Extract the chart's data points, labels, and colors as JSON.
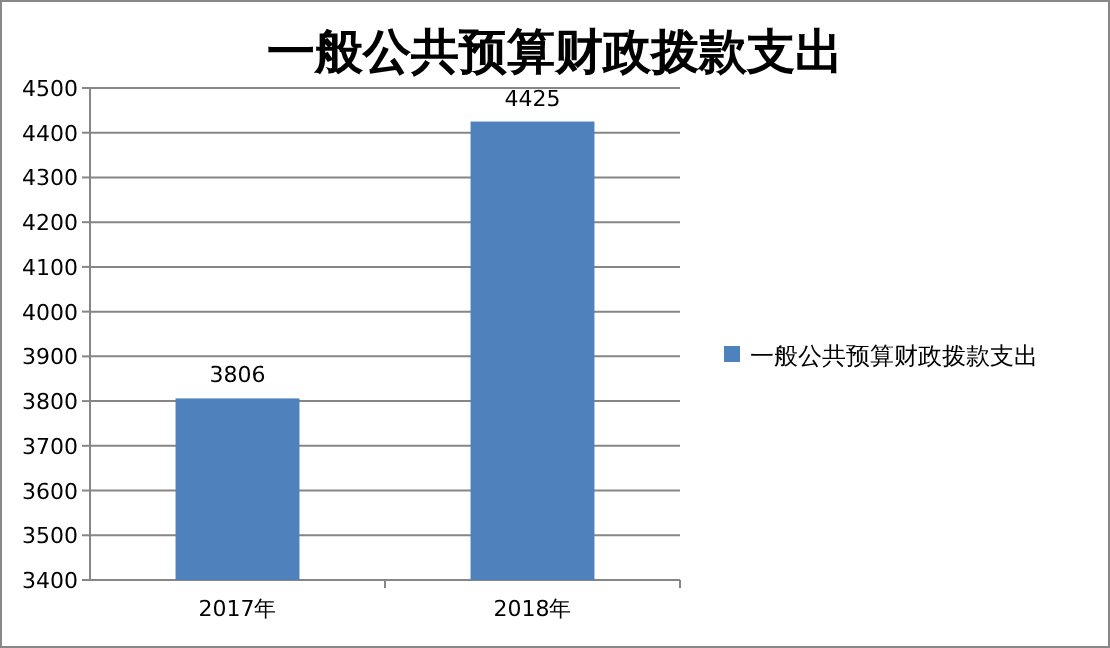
{
  "chart_data": {
    "type": "bar",
    "title": "一般公共预算财政拨款支出",
    "categories": [
      "2017年",
      "2018年"
    ],
    "series": [
      {
        "name": "一般公共预算财政拨款支出",
        "color": "#4f81bd",
        "values": [
          3806,
          4425
        ]
      }
    ],
    "ylim": [
      3400,
      4500
    ],
    "yticks": [
      3400,
      3500,
      3600,
      3700,
      3800,
      3900,
      4000,
      4100,
      4200,
      4300,
      4400,
      4500
    ],
    "grid": "y",
    "legend": "right",
    "data_labels": true
  }
}
